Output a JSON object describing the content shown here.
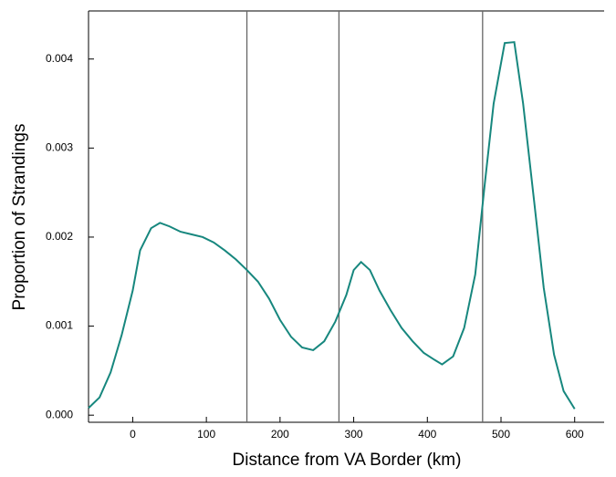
{
  "chart_data": {
    "type": "line",
    "xlabel": "Distance from VA Border (km)",
    "ylabel": "Proportion of Strandings",
    "x": [
      -60,
      -45,
      -30,
      -15,
      0,
      10,
      25,
      37,
      50,
      65,
      80,
      95,
      110,
      125,
      140,
      155,
      170,
      185,
      200,
      215,
      230,
      245,
      260,
      275,
      290,
      300,
      310,
      322,
      335,
      350,
      365,
      380,
      395,
      410,
      420,
      435,
      450,
      465,
      478,
      490,
      505,
      518,
      530,
      545,
      558,
      572,
      585,
      600
    ],
    "series": [
      {
        "color": "#17877e",
        "values": [
          8e-05,
          0.0002,
          0.00048,
          0.0009,
          0.0014,
          0.00185,
          0.0021,
          0.00216,
          0.00212,
          0.00206,
          0.00203,
          0.002,
          0.00194,
          0.00185,
          0.00175,
          0.00163,
          0.0015,
          0.00131,
          0.00107,
          0.00088,
          0.00076,
          0.00073,
          0.00083,
          0.00105,
          0.00135,
          0.00163,
          0.00172,
          0.00163,
          0.0014,
          0.00118,
          0.00098,
          0.00083,
          0.0007,
          0.00062,
          0.00057,
          0.00066,
          0.00098,
          0.00158,
          0.0026,
          0.0035,
          0.00418,
          0.00419,
          0.0035,
          0.0024,
          0.00143,
          0.00068,
          0.00027,
          7e-05
        ]
      }
    ],
    "vlines": [
      155,
      280,
      475
    ],
    "vline_color": "#666666",
    "xlim": [
      -60,
      640
    ],
    "ylim": [
      -8e-05,
      0.00454
    ],
    "xticks": [
      0,
      100,
      200,
      300,
      400,
      500,
      600
    ],
    "yticks": [
      {
        "value": 0,
        "label": "0.000"
      },
      {
        "value": 0.001,
        "label": "0.001"
      },
      {
        "value": 0.002,
        "label": "0.002"
      },
      {
        "value": 0.003,
        "label": "0.003"
      },
      {
        "value": 0.004,
        "label": "0.004"
      }
    ]
  }
}
